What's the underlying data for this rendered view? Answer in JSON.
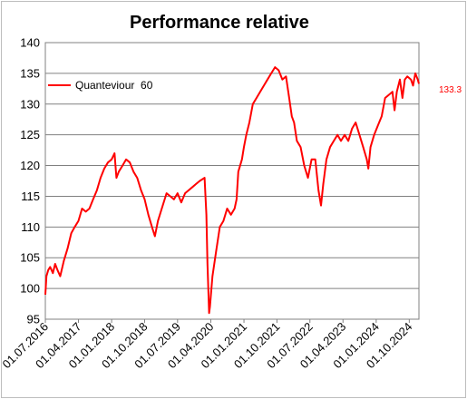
{
  "chart_data": {
    "type": "line",
    "title": "Performance relative",
    "ylim": [
      95,
      140
    ],
    "yticks": [
      95,
      100,
      105,
      110,
      115,
      120,
      125,
      130,
      135,
      140
    ],
    "xlim": [
      "2016-07-01",
      "2024-12-20"
    ],
    "xticks": [
      "01.07.2016",
      "01.04.2017",
      "01.01.2018",
      "01.10.2018",
      "01.07.2019",
      "01.04.2020",
      "01.01.2021",
      "01.10.2021",
      "01.07.2022",
      "01.04.2023",
      "01.01.2024",
      "01.10.2024"
    ],
    "xtick_dates": [
      "2016-07-01",
      "2017-04-01",
      "2018-01-01",
      "2018-10-01",
      "2019-07-01",
      "2020-04-01",
      "2021-01-01",
      "2021-10-01",
      "2022-07-01",
      "2023-04-01",
      "2024-01-01",
      "2024-10-01"
    ],
    "grid": true,
    "legend_position": "top-left",
    "series": [
      {
        "name": "Quanteviour  60",
        "color": "#ff0000",
        "last_value_label": "133.3",
        "points": [
          [
            "2016-07-01",
            99.0
          ],
          [
            "2016-07-10",
            102.0
          ],
          [
            "2016-07-25",
            103.0
          ],
          [
            "2016-08-10",
            103.5
          ],
          [
            "2016-09-01",
            102.5
          ],
          [
            "2016-09-20",
            104.0
          ],
          [
            "2016-10-10",
            103.0
          ],
          [
            "2016-11-01",
            102.0
          ],
          [
            "2016-12-01",
            104.5
          ],
          [
            "2017-01-01",
            106.5
          ],
          [
            "2017-02-01",
            109.0
          ],
          [
            "2017-03-01",
            110.0
          ],
          [
            "2017-04-01",
            111.0
          ],
          [
            "2017-05-01",
            113.0
          ],
          [
            "2017-06-01",
            112.5
          ],
          [
            "2017-07-01",
            113.0
          ],
          [
            "2017-08-01",
            114.5
          ],
          [
            "2017-09-01",
            116.0
          ],
          [
            "2017-10-01",
            118.0
          ],
          [
            "2017-11-01",
            119.5
          ],
          [
            "2017-12-01",
            120.5
          ],
          [
            "2018-01-01",
            121.0
          ],
          [
            "2018-01-25",
            122.0
          ],
          [
            "2018-02-10",
            118.0
          ],
          [
            "2018-03-01",
            119.0
          ],
          [
            "2018-04-01",
            120.0
          ],
          [
            "2018-05-01",
            121.0
          ],
          [
            "2018-06-01",
            120.5
          ],
          [
            "2018-07-01",
            119.0
          ],
          [
            "2018-08-01",
            118.0
          ],
          [
            "2018-09-01",
            116.0
          ],
          [
            "2018-10-01",
            114.5
          ],
          [
            "2018-11-01",
            112.0
          ],
          [
            "2018-12-01",
            110.0
          ],
          [
            "2018-12-25",
            108.5
          ],
          [
            "2019-01-20",
            111.0
          ],
          [
            "2019-02-20",
            113.0
          ],
          [
            "2019-04-01",
            115.5
          ],
          [
            "2019-05-01",
            115.0
          ],
          [
            "2019-06-01",
            114.5
          ],
          [
            "2019-07-01",
            115.5
          ],
          [
            "2019-08-01",
            114.0
          ],
          [
            "2019-09-01",
            115.5
          ],
          [
            "2019-10-01",
            116.0
          ],
          [
            "2019-11-01",
            116.5
          ],
          [
            "2019-12-01",
            117.0
          ],
          [
            "2020-01-01",
            117.5
          ],
          [
            "2020-02-10",
            118.0
          ],
          [
            "2020-02-25",
            112.0
          ],
          [
            "2020-03-05",
            104.0
          ],
          [
            "2020-03-18",
            96.0
          ],
          [
            "2020-03-25",
            97.0
          ],
          [
            "2020-04-15",
            102.0
          ],
          [
            "2020-05-15",
            106.0
          ],
          [
            "2020-06-15",
            110.0
          ],
          [
            "2020-07-15",
            111.0
          ],
          [
            "2020-08-15",
            113.0
          ],
          [
            "2020-09-15",
            112.0
          ],
          [
            "2020-10-15",
            113.0
          ],
          [
            "2020-11-01",
            114.5
          ],
          [
            "2020-11-15",
            119.0
          ],
          [
            "2020-12-15",
            121.0
          ],
          [
            "2021-01-01",
            123.0
          ],
          [
            "2021-01-20",
            125.0
          ],
          [
            "2021-02-15",
            127.0
          ],
          [
            "2021-03-15",
            130.0
          ],
          [
            "2021-04-15",
            131.0
          ],
          [
            "2021-05-15",
            132.0
          ],
          [
            "2021-06-15",
            133.0
          ],
          [
            "2021-07-15",
            134.0
          ],
          [
            "2021-08-15",
            135.0
          ],
          [
            "2021-09-15",
            136.0
          ],
          [
            "2021-10-15",
            135.5
          ],
          [
            "2021-11-15",
            134.0
          ],
          [
            "2021-12-15",
            134.5
          ],
          [
            "2022-01-10",
            131.0
          ],
          [
            "2022-02-01",
            128.0
          ],
          [
            "2022-02-20",
            127.0
          ],
          [
            "2022-03-15",
            124.0
          ],
          [
            "2022-04-15",
            123.0
          ],
          [
            "2022-05-15",
            120.0
          ],
          [
            "2022-06-15",
            118.0
          ],
          [
            "2022-07-15",
            121.0
          ],
          [
            "2022-08-15",
            121.0
          ],
          [
            "2022-09-10",
            116.0
          ],
          [
            "2022-10-01",
            113.5
          ],
          [
            "2022-10-20",
            117.0
          ],
          [
            "2022-11-15",
            121.0
          ],
          [
            "2022-12-15",
            123.0
          ],
          [
            "2023-01-15",
            124.0
          ],
          [
            "2023-02-15",
            125.0
          ],
          [
            "2023-03-15",
            124.0
          ],
          [
            "2023-04-15",
            125.0
          ],
          [
            "2023-05-15",
            124.0
          ],
          [
            "2023-06-15",
            126.0
          ],
          [
            "2023-07-15",
            127.0
          ],
          [
            "2023-08-15",
            125.0
          ],
          [
            "2023-09-15",
            123.0
          ],
          [
            "2023-10-15",
            121.0
          ],
          [
            "2023-10-28",
            119.5
          ],
          [
            "2023-11-15",
            123.0
          ],
          [
            "2023-12-15",
            125.0
          ],
          [
            "2024-01-15",
            126.5
          ],
          [
            "2024-02-15",
            128.0
          ],
          [
            "2024-03-15",
            131.0
          ],
          [
            "2024-04-15",
            131.5
          ],
          [
            "2024-05-15",
            132.0
          ],
          [
            "2024-06-01",
            129.0
          ],
          [
            "2024-06-20",
            132.0
          ],
          [
            "2024-07-15",
            134.0
          ],
          [
            "2024-08-05",
            131.0
          ],
          [
            "2024-08-25",
            134.0
          ],
          [
            "2024-09-15",
            134.5
          ],
          [
            "2024-10-15",
            134.0
          ],
          [
            "2024-11-01",
            133.0
          ],
          [
            "2024-11-20",
            135.0
          ],
          [
            "2024-12-10",
            134.0
          ],
          [
            "2024-12-20",
            133.3
          ]
        ]
      }
    ]
  }
}
